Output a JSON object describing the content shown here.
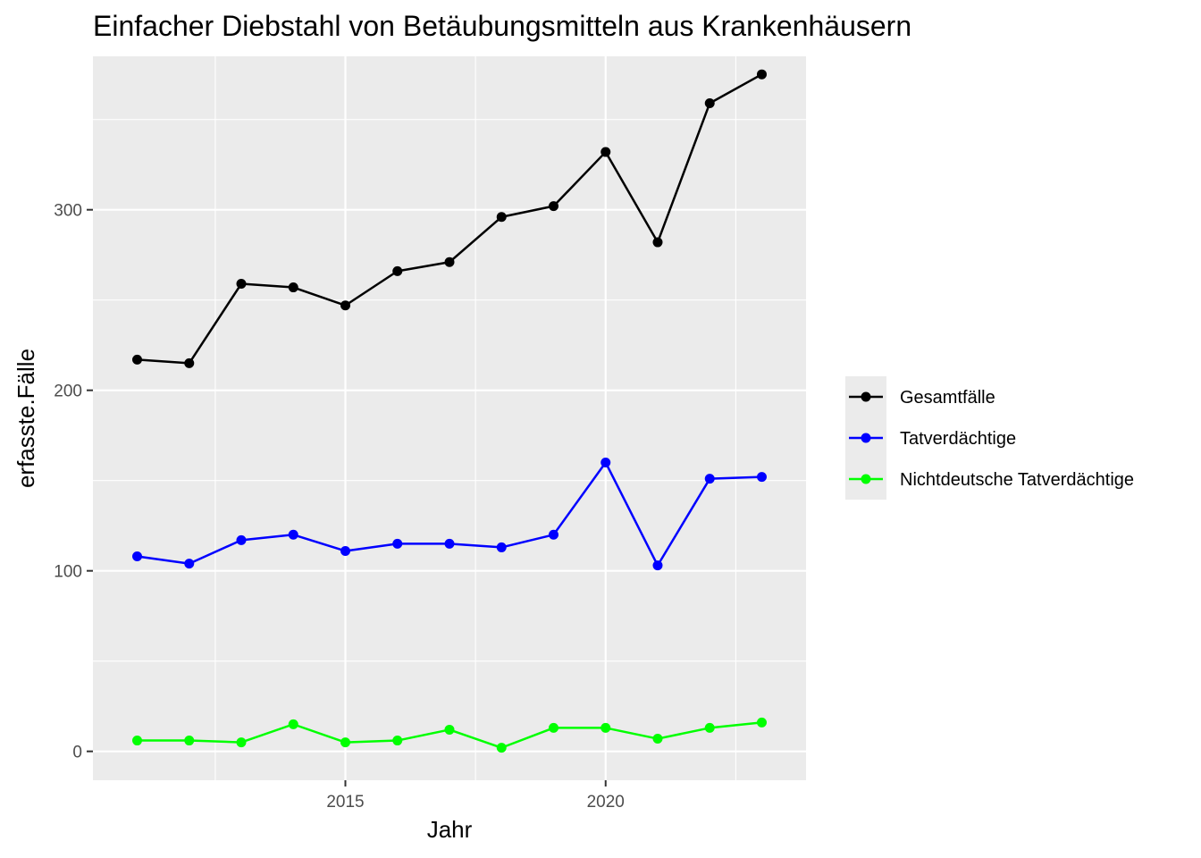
{
  "chart_data": {
    "type": "line",
    "title": "Einfacher Diebstahl von Betäubungsmitteln aus Krankenhäusern",
    "xlabel": "Jahr",
    "ylabel": "erfasste.Fälle",
    "x": [
      2011,
      2012,
      2013,
      2014,
      2015,
      2016,
      2017,
      2018,
      2019,
      2020,
      2021,
      2022,
      2023
    ],
    "xlim": [
      2010.15,
      2023.85
    ],
    "ylim": [
      -16,
      385
    ],
    "x_ticks": [
      2015,
      2020
    ],
    "x_tick_labels": [
      "2015",
      "2020"
    ],
    "x_minor_ticks": [
      2012.5,
      2017.5,
      2022.5
    ],
    "y_ticks": [
      0,
      100,
      200,
      300
    ],
    "y_tick_labels": [
      "0",
      "100",
      "200",
      "300"
    ],
    "y_minor_ticks": [
      50,
      150,
      250,
      350
    ],
    "grid": true,
    "legend_position": "right",
    "series": [
      {
        "name": "Gesamtfälle",
        "color": "#000000",
        "values": [
          217,
          215,
          259,
          257,
          247,
          266,
          271,
          296,
          302,
          332,
          282,
          359,
          375
        ]
      },
      {
        "name": "Tatverdächtige",
        "color": "#0000ff",
        "values": [
          108,
          104,
          117,
          120,
          111,
          115,
          115,
          113,
          120,
          160,
          103,
          151,
          152
        ]
      },
      {
        "name": "Nichtdeutsche Tatverdächtige",
        "color": "#00ff00",
        "values": [
          6,
          6,
          5,
          15,
          5,
          6,
          12,
          2,
          13,
          13,
          7,
          13,
          16
        ]
      }
    ]
  }
}
